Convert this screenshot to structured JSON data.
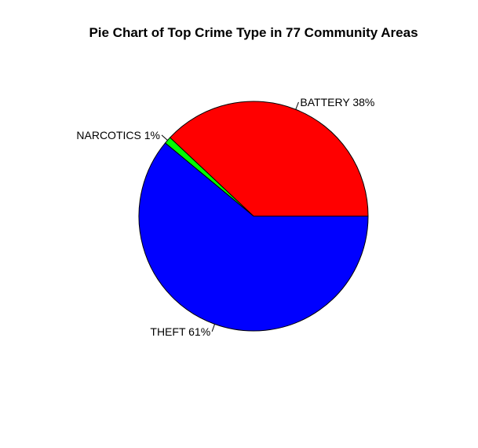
{
  "chart_data": {
    "type": "pie",
    "title": "Pie Chart of Top Crime Type in 77 Community Areas",
    "slices": [
      {
        "label": "BATTERY 38%",
        "category": "BATTERY",
        "percent": 38,
        "color": "#ff0000"
      },
      {
        "label": "NARCOTICS 1%",
        "category": "NARCOTICS",
        "percent": 1,
        "color": "#00ff00"
      },
      {
        "label": "THEFT 61%",
        "category": "THEFT",
        "percent": 61,
        "color": "#0000ff"
      }
    ],
    "start_direction": "3 o'clock",
    "slice_order": "counter-clockwise",
    "border_color": "#000000"
  }
}
